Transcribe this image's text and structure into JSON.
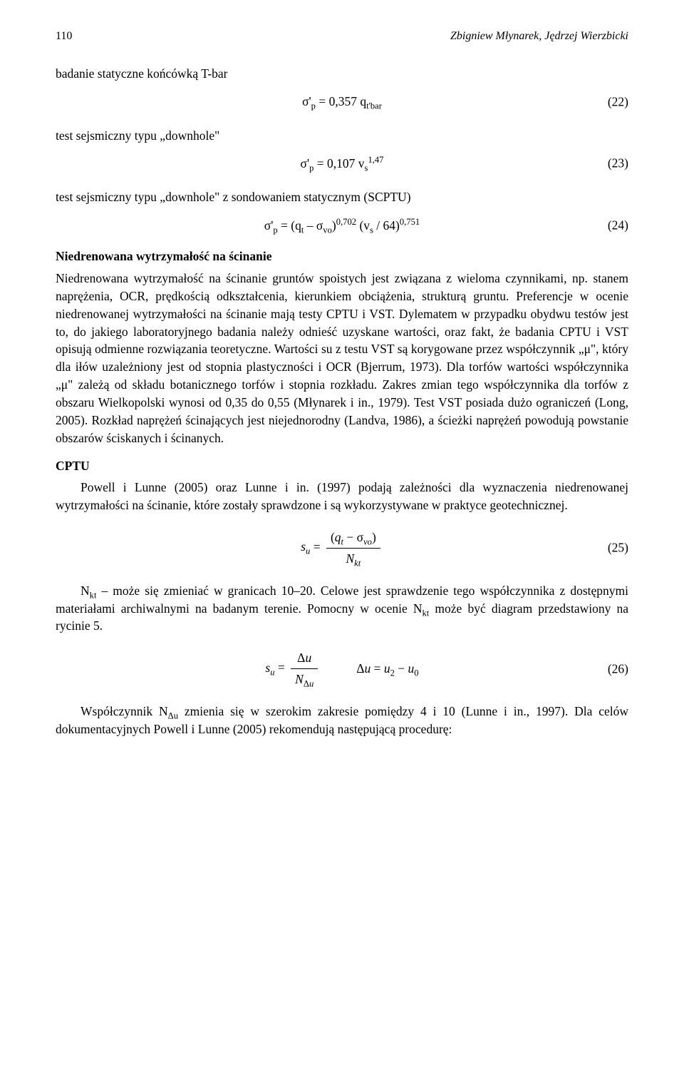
{
  "header": {
    "page_number": "110",
    "authors": "Zbigniew Młynarek, Jędrzej Wierzbicki"
  },
  "section1": {
    "label": "badanie statyczne końcówką T-bar"
  },
  "eq22": {
    "content_html": "σ'<sub>p</sub> = 0,357 q<sub>t'bar</sub>",
    "number": "(22)"
  },
  "section2": {
    "label": "test sejsmiczny typu „downhole\""
  },
  "eq23": {
    "content_html": "σ'<sub>p</sub> = 0,107 v<sub>s</sub><sup>1,47</sup>",
    "number": "(23)"
  },
  "section3": {
    "label": "test sejsmiczny typu „downhole\" z sondowaniem statycznym (SCPTU)"
  },
  "eq24": {
    "content_html": "σ'<sub>p</sub> = (q<sub>t</sub> – σ<sub>vo</sub>)<sup>0,702</sup> (v<sub>s</sub> / 64)<sup>0,751</sup>",
    "number": "(24)"
  },
  "heading1": {
    "text": "Niedrenowana wytrzymałość na ścinanie"
  },
  "para1": {
    "text": "Niedrenowana wytrzymałość na ścinanie gruntów spoistych jest związana z wieloma czynnikami, np. stanem naprężenia, OCR, prędkością odkształcenia, kierunkiem obciążenia, strukturą gruntu. Preferencje w ocenie niedrenowanej wytrzymałości na ścinanie mają testy CPTU i VST. Dylematem w przypadku obydwu testów jest to, do jakiego laboratoryjnego badania należy odnieść uzyskane wartości, oraz fakt, że badania CPTU i VST opisują odmienne rozwiązania teoretyczne. Wartości su z testu VST są korygowane przez współczynnik „μ\", który dla iłów uzależniony jest od stopnia plastyczności i OCR (Bjerrum, 1973). Dla torfów wartości współczynnika „μ\" zależą od składu botanicznego torfów i stopnia rozkładu. Zakres zmian tego współczynnika dla torfów z obszaru Wielkopolski wynosi od 0,35 do 0,55 (Młynarek i in., 1979). Test VST posiada dużo ograniczeń (Long, 2005). Rozkład naprężeń ścinających jest niejednorodny (Landva, 1986), a ścieżki naprężeń powodują powstanie obszarów ściskanych i ścinanych."
  },
  "heading2": {
    "text": "CPTU"
  },
  "para2": {
    "text": "Powell i Lunne (2005) oraz Lunne i in. (1997) podają zależności dla wyznaczenia niedrenowanej wytrzymałości na ścinanie, które zostały sprawdzone i są wykorzystywane w praktyce geotechnicznej."
  },
  "eq25": {
    "lhs_html": "<span class=\"italic\">s<sub>u</sub></span> = ",
    "num_html": "(<span class=\"italic\">q<sub>t</sub></span> − σ<sub><span class=\"italic\">vo</span></sub>)",
    "den_html": "<span class=\"italic\">N<sub>kt</sub></span>",
    "number": "(25)"
  },
  "para3": {
    "text_html": "N<sub>kt</sub> – może się zmieniać w granicach 10–20. Celowe jest sprawdzenie tego współczynnika z dostępnymi materiałami archiwalnymi na badanym terenie. Pomocny w ocenie N<sub>kt</sub> może być diagram przedstawiony na rycinie 5."
  },
  "eq26": {
    "part1_lhs_html": "<span class=\"italic\">s<sub>u</sub></span> = ",
    "part1_num_html": "Δ<span class=\"italic\">u</span>",
    "part1_den_html": "<span class=\"italic\">N</span><sub>Δ<span class=\"italic\">u</span></sub>",
    "part2_html": "Δ<span class=\"italic\">u</span> = <span class=\"italic\">u</span><sub>2</sub> − <span class=\"italic\">u</span><sub>0</sub>",
    "number": "(26)"
  },
  "para4": {
    "text_html": "Współczynnik N<sub>Δu</sub> zmienia się w szerokim zakresie pomiędzy 4 i 10 (Lunne i in., 1997). Dla celów dokumentacyjnych Powell i Lunne (2005) rekomendują następującą procedurę:"
  }
}
